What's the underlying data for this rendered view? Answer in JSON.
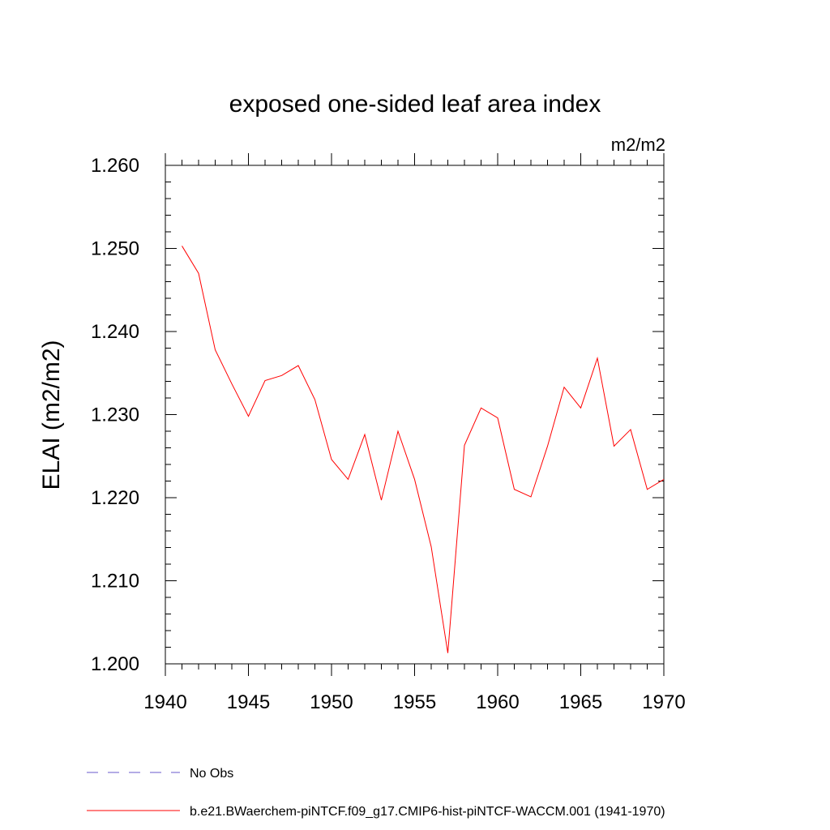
{
  "chart_data": {
    "type": "line",
    "title": "exposed one-sided leaf area index",
    "units": "m2/m2",
    "ylabel": "ELAI  (m2/m2)",
    "xlabel": "",
    "xlim": [
      1940,
      1970
    ],
    "ylim": [
      1.2,
      1.26
    ],
    "x_ticks": [
      1940,
      1945,
      1950,
      1955,
      1960,
      1965,
      1970
    ],
    "x_tick_labels": [
      "1940",
      "1945",
      "1950",
      "1955",
      "1960",
      "1965",
      "1970"
    ],
    "y_ticks": [
      1.2,
      1.21,
      1.22,
      1.23,
      1.24,
      1.25,
      1.26
    ],
    "y_tick_labels": [
      "1.200",
      "1.210",
      "1.220",
      "1.230",
      "1.240",
      "1.250",
      "1.260"
    ],
    "grid": false,
    "legend_position": "bottom",
    "series": [
      {
        "name": "b.e21.BWaerchem-piNTCF.f09_g17.CMIP6-hist-piNTCF-WACCM.001 (1941-1970)",
        "color": "#ff0000",
        "style": "solid",
        "x": [
          1941,
          1942,
          1943,
          1944,
          1945,
          1946,
          1947,
          1948,
          1949,
          1950,
          1951,
          1952,
          1953,
          1954,
          1955,
          1956,
          1957,
          1958,
          1959,
          1960,
          1961,
          1962,
          1963,
          1964,
          1965,
          1966,
          1967,
          1968,
          1969,
          1970
        ],
        "y": [
          1.2503,
          1.247,
          1.2378,
          1.2337,
          1.2298,
          1.2341,
          1.2347,
          1.2359,
          1.2318,
          1.2246,
          1.2222,
          1.2276,
          1.2197,
          1.228,
          1.2222,
          1.2141,
          1.2013,
          1.2263,
          1.2308,
          1.2296,
          1.221,
          1.2201,
          1.2262,
          1.2333,
          1.2308,
          1.2368,
          1.2262,
          1.2282,
          1.221,
          1.2222
        ]
      },
      {
        "name": "No Obs",
        "color": "#6a5acd",
        "style": "dashed",
        "x": [],
        "y": []
      }
    ]
  }
}
